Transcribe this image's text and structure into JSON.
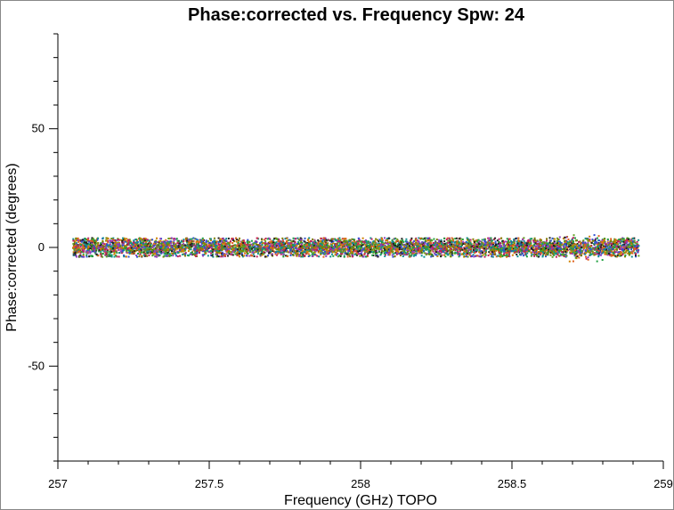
{
  "chart_data": {
    "type": "scatter",
    "title": "Phase:corrected vs. Frequency Spw: 24",
    "xlabel": "Frequency (GHz) TOPO",
    "ylabel": "Phase:corrected (degrees)",
    "xlim": [
      257,
      259
    ],
    "ylim": [
      -90,
      90
    ],
    "x_ticks": [
      257,
      257.5,
      258,
      258.5,
      259
    ],
    "x_tick_labels": [
      "257",
      "257.5",
      "258",
      "258.5",
      "259"
    ],
    "y_ticks": [
      -50,
      0,
      50
    ],
    "y_tick_labels": [
      "-50",
      "0",
      "50"
    ],
    "x_minor_step": 0.1,
    "y_minor_step": 10,
    "grid": false,
    "series_colors": [
      "#d08000",
      "#20a040",
      "#c02060",
      "#3050d0",
      "#109090",
      "#9040c0",
      "#808000",
      "#202020",
      "#e06020",
      "#60a020"
    ],
    "band": {
      "x_start": 257.05,
      "x_end": 258.92,
      "center": 0,
      "core_half_width": 2,
      "outer_half_width": 4,
      "widened_region": [
        258.6,
        258.8
      ],
      "widened_half_width": 6
    }
  }
}
